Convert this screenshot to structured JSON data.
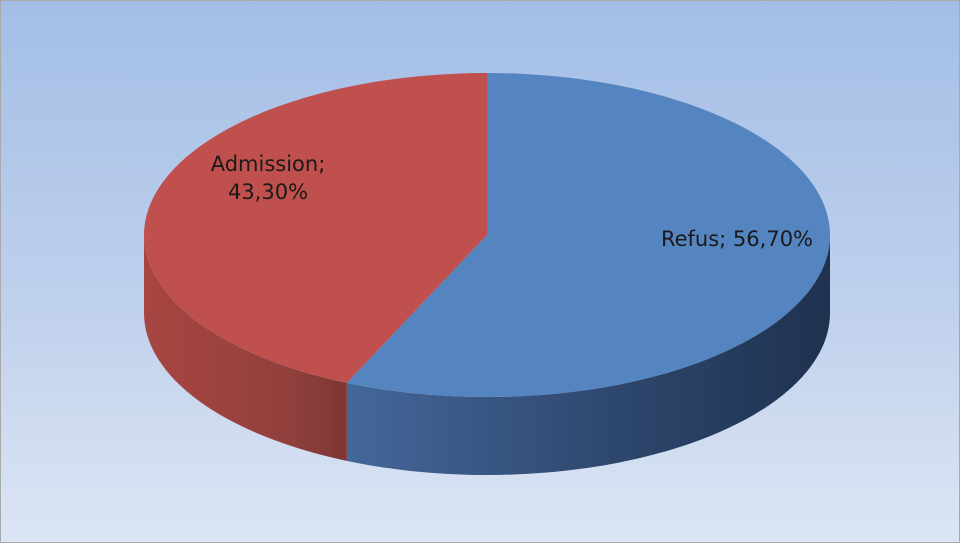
{
  "chart_data": {
    "type": "pie",
    "style": "3d",
    "categories": [
      "Refus",
      "Admission"
    ],
    "values": [
      56.7,
      43.3
    ],
    "data_labels": [
      "Refus; 56,70%",
      "Admission; 43,30%"
    ],
    "colors": [
      "#5585C0",
      "#C0504D"
    ],
    "title": "",
    "legend": "none"
  }
}
